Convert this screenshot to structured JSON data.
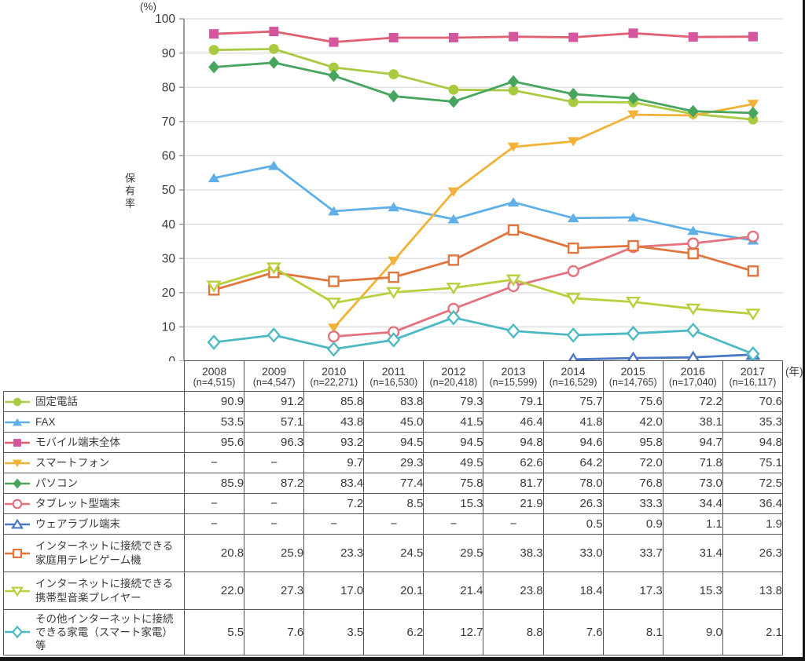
{
  "chart_data": {
    "type": "line",
    "title": "",
    "ylabel": "保有率",
    "y_unit_label": "(%)",
    "x_unit_label": "(年)",
    "ylim": [
      0,
      100
    ],
    "yticks": [
      0,
      10,
      20,
      30,
      40,
      50,
      60,
      70,
      80,
      90,
      100
    ],
    "grid": true,
    "legend_position": "table-left-column",
    "missing_label": "−",
    "grid_color": "#d9d9d9",
    "axis_color": "#8c8c8c",
    "categories": [
      "2008",
      "2009",
      "2010",
      "2011",
      "2012",
      "2013",
      "2014",
      "2015",
      "2016",
      "2017"
    ],
    "sample_sizes": [
      "(n=4,515)",
      "(n=4,547)",
      "(n=22,271)",
      "(n=16,530)",
      "(n=20,418)",
      "(n=15,599)",
      "(n=16,529)",
      "(n=14,765)",
      "(n=17,040)",
      "(n=16,117)"
    ],
    "series": [
      {
        "id": "fixed-phone",
        "name": "固定電話",
        "marker": "circle",
        "open": false,
        "color": "#aaca42",
        "values": [
          90.9,
          91.2,
          85.8,
          83.8,
          79.3,
          79.1,
          75.7,
          75.6,
          72.2,
          70.6
        ]
      },
      {
        "id": "fax",
        "name": "FAX",
        "marker": "triangle-up",
        "open": false,
        "color": "#5fb0e8",
        "values": [
          53.5,
          57.1,
          43.8,
          45.0,
          41.5,
          46.4,
          41.8,
          42.0,
          38.1,
          35.3
        ]
      },
      {
        "id": "mobile-overall",
        "name": "モバイル端末全体",
        "marker": "square",
        "open": false,
        "color": "#e06071",
        "marker_color": "#d4569e",
        "values": [
          95.6,
          96.3,
          93.2,
          94.5,
          94.5,
          94.8,
          94.6,
          95.8,
          94.7,
          94.8
        ]
      },
      {
        "id": "smartphone",
        "name": "スマートフォン",
        "marker": "triangle-down",
        "open": false,
        "color": "#f2b238",
        "values": [
          null,
          null,
          9.7,
          29.3,
          49.5,
          62.6,
          64.2,
          72.0,
          71.8,
          75.1
        ]
      },
      {
        "id": "pc",
        "name": "パソコン",
        "marker": "diamond",
        "open": false,
        "color": "#47a55f",
        "values": [
          85.9,
          87.2,
          83.4,
          77.4,
          75.8,
          81.7,
          78.0,
          76.8,
          73.0,
          72.5
        ]
      },
      {
        "id": "tablet",
        "name": "タブレット型端末",
        "marker": "circle",
        "open": true,
        "color": "#e4737f",
        "values": [
          null,
          null,
          7.2,
          8.5,
          15.3,
          21.9,
          26.3,
          33.3,
          34.4,
          36.4
        ]
      },
      {
        "id": "wearable",
        "name": "ウェアラブル端末",
        "marker": "triangle-up",
        "open": true,
        "color": "#4a78c5",
        "values": [
          null,
          null,
          null,
          null,
          null,
          null,
          0.5,
          0.9,
          1.1,
          1.9
        ]
      },
      {
        "id": "game-console",
        "name": "インターネットに接続できる家庭用テレビゲーム機",
        "marker": "square",
        "open": true,
        "color": "#e0763d",
        "values": [
          20.8,
          25.9,
          23.3,
          24.5,
          29.5,
          38.3,
          33.0,
          33.7,
          31.4,
          26.3
        ]
      },
      {
        "id": "music-player",
        "name": "インターネットに接続できる携帯型音楽プレイヤー",
        "marker": "triangle-down",
        "open": true,
        "color": "#b9cf3c",
        "values": [
          22.0,
          27.3,
          17.0,
          20.1,
          21.4,
          23.8,
          18.4,
          17.3,
          15.3,
          13.8
        ]
      },
      {
        "id": "smart-appliance",
        "name": "その他インターネットに接続できる家電（スマート家電）等",
        "marker": "diamond",
        "open": true,
        "color": "#4db9c3",
        "values": [
          5.5,
          7.6,
          3.5,
          6.2,
          12.7,
          8.8,
          7.6,
          8.1,
          9.0,
          2.1
        ]
      }
    ]
  }
}
